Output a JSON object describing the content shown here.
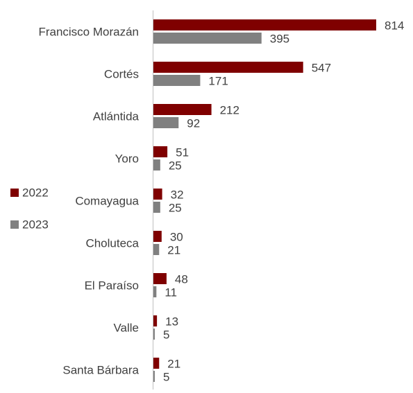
{
  "chart_data": {
    "type": "bar",
    "orientation": "horizontal",
    "categories": [
      "Francisco Morazán",
      "Cortés",
      "Atlántida",
      "Yoro",
      "Comayagua",
      "Choluteca",
      "El Paraíso",
      "Valle",
      "Santa Bárbara"
    ],
    "series": [
      {
        "name": "2022",
        "color": "#7f0000",
        "values": [
          814,
          547,
          212,
          51,
          32,
          30,
          48,
          13,
          21
        ]
      },
      {
        "name": "2023",
        "color": "#808080",
        "values": [
          395,
          171,
          92,
          25,
          25,
          21,
          11,
          5,
          5
        ]
      }
    ],
    "legend": "left"
  }
}
